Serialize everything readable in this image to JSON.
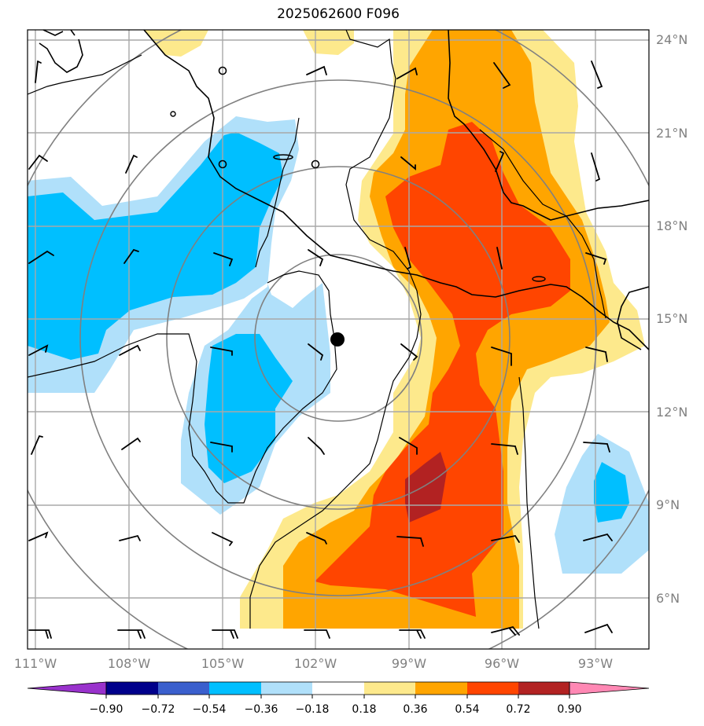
{
  "title": "2025062600 F096",
  "lat_labels": [
    "24°N",
    "21°N",
    "18°N",
    "15°N",
    "12°N",
    "9°N",
    "6°N"
  ],
  "lon_labels": [
    "111°W",
    "108°W",
    "105°W",
    "102°W",
    "99°W",
    "96°W",
    "93°W"
  ],
  "colorbar": {
    "ticks": [
      "−0.90",
      "−0.72",
      "−0.54",
      "−0.36",
      "−0.18",
      "0.18",
      "0.36",
      "0.54",
      "0.72",
      "0.90"
    ],
    "colors": [
      "#9932cc",
      "#00008b",
      "#3a5fcd",
      "#00bfff",
      "#b0e0fa",
      "#ffffff",
      "#fde98c",
      "#ffa500",
      "#ff4500",
      "#b22222",
      "#ff88b4"
    ]
  },
  "field_colors": {
    "light_blue": "#b0e0fa",
    "blue": "#00bfff",
    "yellow": "#fde98c",
    "orange": "#ffa500",
    "red_orange": "#ff4500",
    "dark_red": "#b22222"
  },
  "storm_center_marker": "black-dot"
}
